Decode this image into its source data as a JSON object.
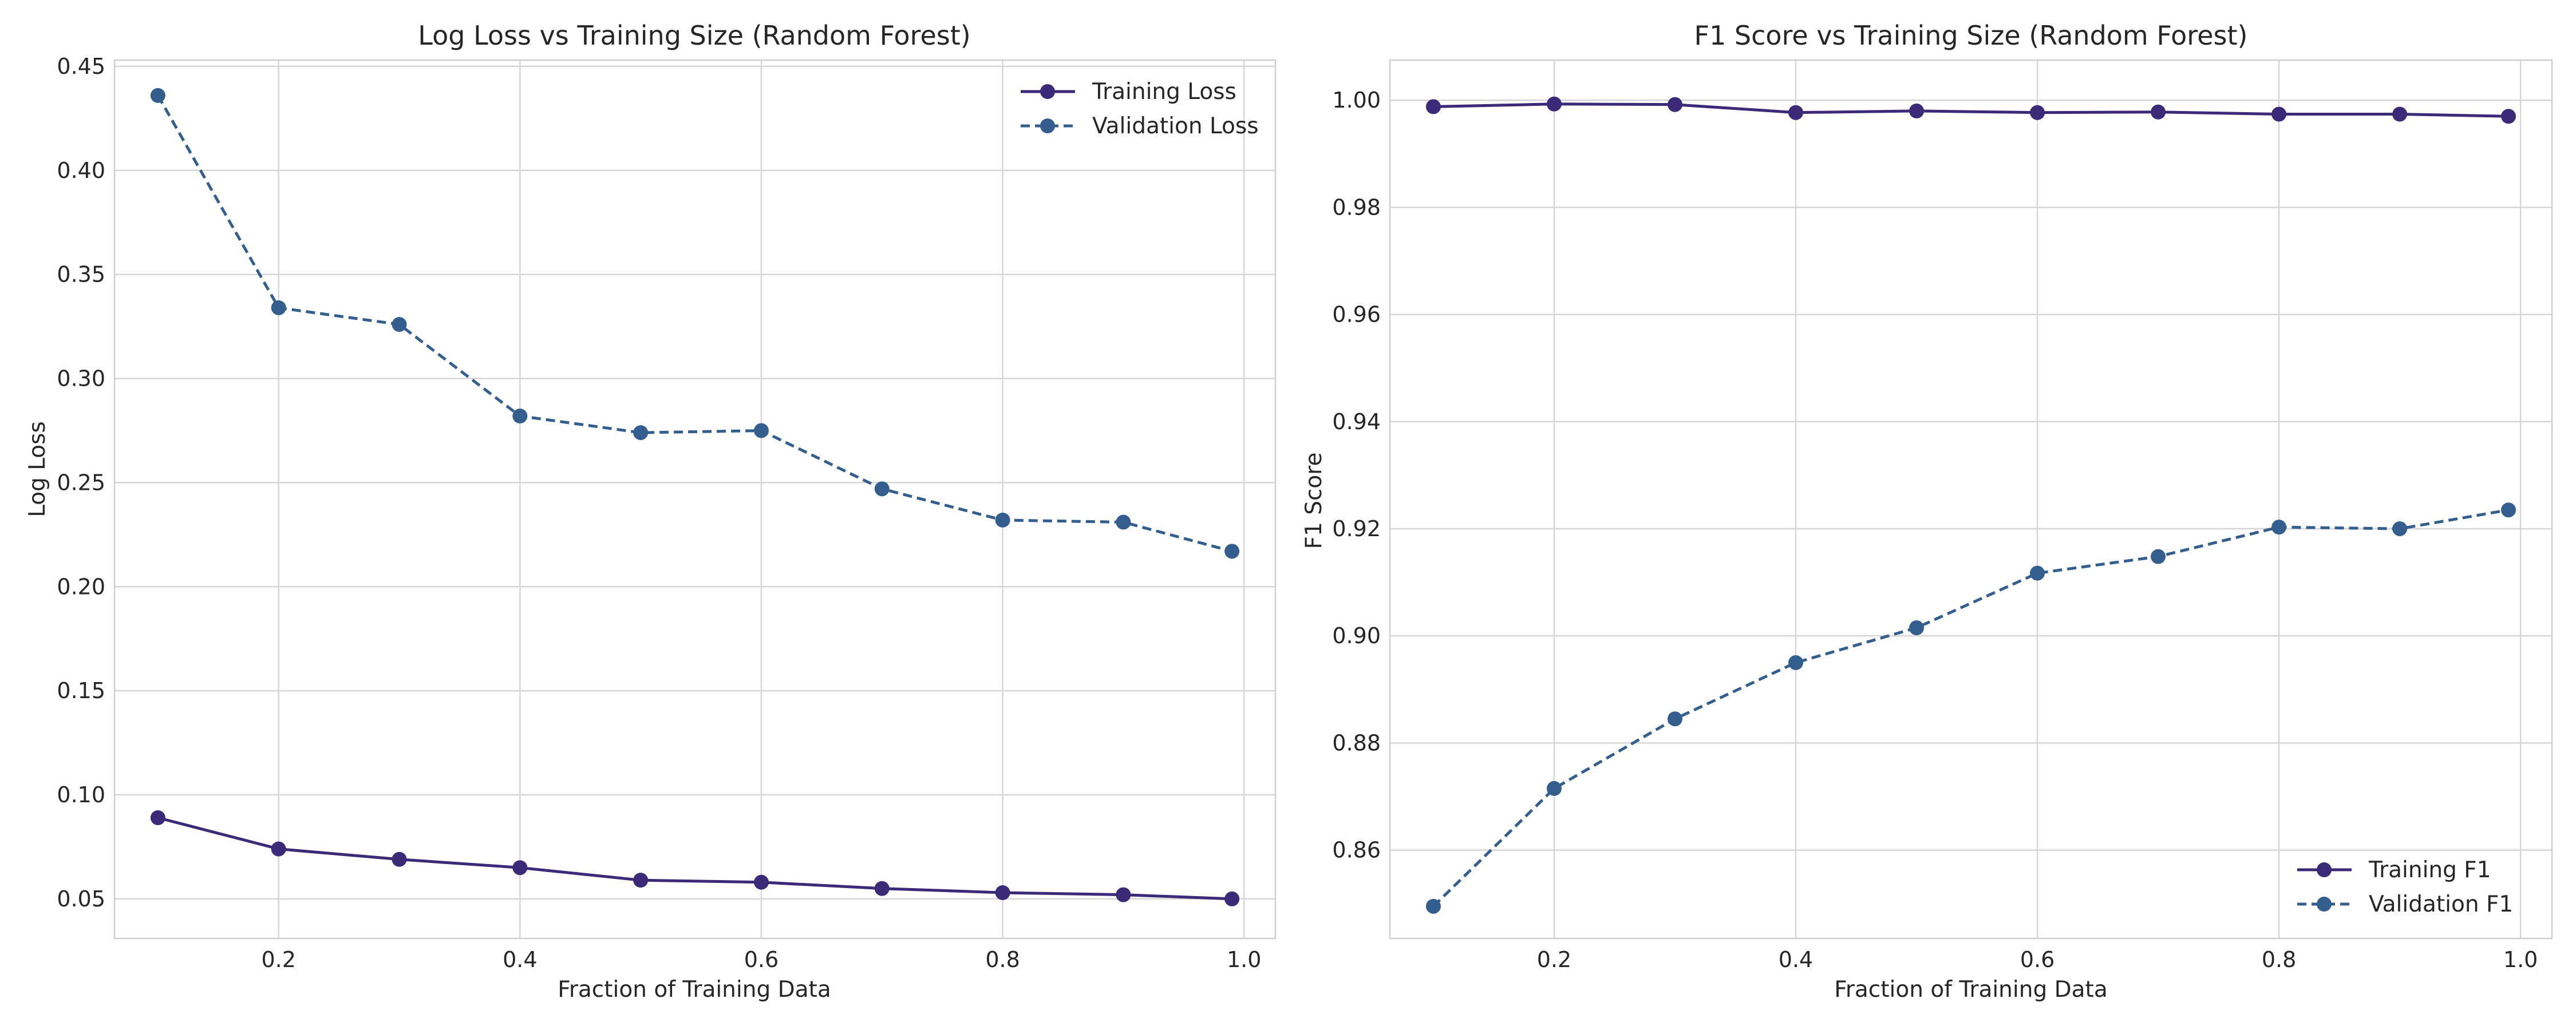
{
  "chart_data": [
    {
      "type": "line",
      "title": "Log Loss vs Training Size (Random Forest)",
      "xlabel": "Fraction of Training Data",
      "ylabel": "Log Loss",
      "xlim": [
        0.064,
        1.026
      ],
      "ylim": [
        0.031,
        0.453
      ],
      "xticks": [
        "0.2",
        "0.4",
        "0.6",
        "0.8",
        "1.0"
      ],
      "yticks": [
        "0.05",
        "0.10",
        "0.15",
        "0.20",
        "0.25",
        "0.30",
        "0.35",
        "0.40",
        "0.45"
      ],
      "grid": true,
      "legend_position": "top-right",
      "x": [
        0.1,
        0.2,
        0.3,
        0.4,
        0.5,
        0.6,
        0.7,
        0.8,
        0.9,
        0.99
      ],
      "series": [
        {
          "name": "Training Loss",
          "style": "solid",
          "color": "#3b2a77",
          "values": [
            0.089,
            0.074,
            0.069,
            0.065,
            0.059,
            0.058,
            0.055,
            0.053,
            0.052,
            0.05
          ]
        },
        {
          "name": "Validation Loss",
          "style": "dashed",
          "color": "#335e8d",
          "values": [
            0.436,
            0.334,
            0.326,
            0.282,
            0.274,
            0.275,
            0.247,
            0.232,
            0.231,
            0.217
          ]
        }
      ]
    },
    {
      "type": "line",
      "title": "F1 Score vs Training Size (Random Forest)",
      "xlabel": "Fraction of Training Data",
      "ylabel": "F1 Score",
      "xlim": [
        0.064,
        1.026
      ],
      "ylim": [
        0.8435,
        1.0075
      ],
      "xticks": [
        "0.2",
        "0.4",
        "0.6",
        "0.8",
        "1.0"
      ],
      "yticks": [
        "0.86",
        "0.88",
        "0.90",
        "0.92",
        "0.94",
        "0.96",
        "0.98",
        "1.00"
      ],
      "grid": true,
      "legend_position": "bottom-right",
      "x": [
        0.1,
        0.2,
        0.3,
        0.4,
        0.5,
        0.6,
        0.7,
        0.8,
        0.9,
        0.99
      ],
      "series": [
        {
          "name": "Training F1",
          "style": "solid",
          "color": "#3b2a77",
          "values": [
            0.9988,
            0.9993,
            0.9992,
            0.9977,
            0.998,
            0.9977,
            0.9978,
            0.9974,
            0.9974,
            0.997
          ]
        },
        {
          "name": "Validation F1",
          "style": "dashed",
          "color": "#335e8d",
          "values": [
            0.8495,
            0.8715,
            0.8845,
            0.895,
            0.9015,
            0.9117,
            0.9148,
            0.9203,
            0.92,
            0.9235
          ]
        }
      ]
    }
  ]
}
